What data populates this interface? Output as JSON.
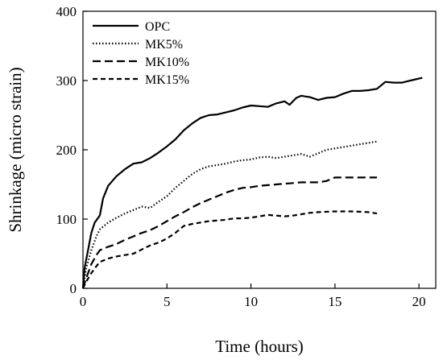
{
  "chart_data": {
    "type": "line",
    "title": "",
    "xlabel": "Time (hours)",
    "ylabel": "Shrinkage (micro strain)",
    "xlim": [
      0,
      21
    ],
    "ylim": [
      0,
      400
    ],
    "xticks": [
      0,
      5,
      10,
      15,
      20
    ],
    "yticks": [
      0,
      100,
      200,
      300,
      400
    ],
    "grid": false,
    "legend_position": "top-left",
    "series": [
      {
        "name": "OPC",
        "style": "solid",
        "color": "#000000",
        "points": [
          [
            0,
            0
          ],
          [
            0.1,
            30
          ],
          [
            0.3,
            55
          ],
          [
            0.5,
            80
          ],
          [
            0.7,
            95
          ],
          [
            1.0,
            105
          ],
          [
            1.2,
            130
          ],
          [
            1.5,
            148
          ],
          [
            2.0,
            162
          ],
          [
            2.5,
            172
          ],
          [
            3.0,
            180
          ],
          [
            3.5,
            182
          ],
          [
            4.0,
            188
          ],
          [
            4.5,
            196
          ],
          [
            5.0,
            205
          ],
          [
            5.5,
            215
          ],
          [
            6.0,
            228
          ],
          [
            6.5,
            238
          ],
          [
            7.0,
            246
          ],
          [
            7.5,
            250
          ],
          [
            8.0,
            251
          ],
          [
            8.5,
            254
          ],
          [
            9.0,
            257
          ],
          [
            9.5,
            261
          ],
          [
            10.0,
            264
          ],
          [
            10.5,
            263
          ],
          [
            11.0,
            262
          ],
          [
            11.5,
            267
          ],
          [
            12.0,
            270
          ],
          [
            12.3,
            265
          ],
          [
            12.7,
            275
          ],
          [
            13.0,
            278
          ],
          [
            13.5,
            276
          ],
          [
            14.0,
            272
          ],
          [
            14.5,
            275
          ],
          [
            15.0,
            276
          ],
          [
            15.5,
            281
          ],
          [
            16.0,
            285
          ],
          [
            16.5,
            285
          ],
          [
            17.0,
            286
          ],
          [
            17.5,
            288
          ],
          [
            18.0,
            298
          ],
          [
            18.5,
            297
          ],
          [
            19.0,
            297
          ],
          [
            19.5,
            300
          ],
          [
            20.2,
            304
          ]
        ]
      },
      {
        "name": "MK5%",
        "style": "dotted",
        "color": "#000000",
        "points": [
          [
            0,
            0
          ],
          [
            0.2,
            30
          ],
          [
            0.5,
            55
          ],
          [
            0.8,
            75
          ],
          [
            1.0,
            85
          ],
          [
            1.5,
            95
          ],
          [
            2.0,
            102
          ],
          [
            2.5,
            108
          ],
          [
            3.0,
            113
          ],
          [
            3.5,
            118
          ],
          [
            4.0,
            116
          ],
          [
            4.5,
            125
          ],
          [
            5.0,
            133
          ],
          [
            5.5,
            145
          ],
          [
            6.0,
            155
          ],
          [
            6.5,
            165
          ],
          [
            7.0,
            172
          ],
          [
            7.5,
            176
          ],
          [
            8.0,
            178
          ],
          [
            8.5,
            180
          ],
          [
            9.0,
            183
          ],
          [
            9.5,
            185
          ],
          [
            10.0,
            186
          ],
          [
            10.5,
            189
          ],
          [
            11.0,
            190
          ],
          [
            11.5,
            188
          ],
          [
            12.0,
            190
          ],
          [
            12.5,
            192
          ],
          [
            13.0,
            194
          ],
          [
            13.5,
            190
          ],
          [
            14.0,
            195
          ],
          [
            14.5,
            200
          ],
          [
            15.0,
            202
          ],
          [
            15.5,
            204
          ],
          [
            16.0,
            206
          ],
          [
            16.5,
            208
          ],
          [
            17.0,
            210
          ],
          [
            17.5,
            212
          ]
        ]
      },
      {
        "name": "MK10%",
        "style": "dashed",
        "color": "#000000",
        "points": [
          [
            0,
            0
          ],
          [
            0.2,
            15
          ],
          [
            0.5,
            35
          ],
          [
            0.8,
            48
          ],
          [
            1.0,
            55
          ],
          [
            1.5,
            60
          ],
          [
            2.0,
            64
          ],
          [
            2.5,
            70
          ],
          [
            3.0,
            75
          ],
          [
            3.5,
            80
          ],
          [
            4.0,
            84
          ],
          [
            4.5,
            90
          ],
          [
            5.0,
            97
          ],
          [
            5.5,
            104
          ],
          [
            6.0,
            110
          ],
          [
            6.5,
            117
          ],
          [
            7.0,
            123
          ],
          [
            7.5,
            128
          ],
          [
            8.0,
            133
          ],
          [
            8.5,
            138
          ],
          [
            9.0,
            142
          ],
          [
            9.5,
            145
          ],
          [
            10.0,
            146
          ],
          [
            10.5,
            148
          ],
          [
            11.0,
            149
          ],
          [
            11.5,
            150
          ],
          [
            12.0,
            151
          ],
          [
            12.5,
            152
          ],
          [
            13.0,
            153
          ],
          [
            14.0,
            153
          ],
          [
            14.5,
            155
          ],
          [
            15.0,
            160
          ],
          [
            16.0,
            160
          ],
          [
            17.5,
            160
          ]
        ]
      },
      {
        "name": "MK15%",
        "style": "short-dashed",
        "color": "#000000",
        "points": [
          [
            0,
            0
          ],
          [
            0.2,
            10
          ],
          [
            0.5,
            22
          ],
          [
            0.8,
            32
          ],
          [
            1.0,
            38
          ],
          [
            1.5,
            43
          ],
          [
            2.0,
            46
          ],
          [
            2.5,
            48
          ],
          [
            3.0,
            50
          ],
          [
            3.5,
            56
          ],
          [
            4.0,
            62
          ],
          [
            4.5,
            66
          ],
          [
            5.0,
            72
          ],
          [
            5.5,
            80
          ],
          [
            6.0,
            90
          ],
          [
            6.5,
            93
          ],
          [
            7.0,
            95
          ],
          [
            7.5,
            97
          ],
          [
            8.0,
            98
          ],
          [
            8.5,
            99
          ],
          [
            9.0,
            101
          ],
          [
            9.5,
            101
          ],
          [
            10.0,
            102
          ],
          [
            10.5,
            104
          ],
          [
            11.0,
            106
          ],
          [
            11.5,
            105
          ],
          [
            12.0,
            104
          ],
          [
            12.5,
            105
          ],
          [
            13.0,
            107
          ],
          [
            13.5,
            109
          ],
          [
            14.0,
            110
          ],
          [
            15.0,
            111
          ],
          [
            16.0,
            111
          ],
          [
            17.0,
            110
          ],
          [
            17.5,
            108
          ]
        ]
      }
    ]
  }
}
